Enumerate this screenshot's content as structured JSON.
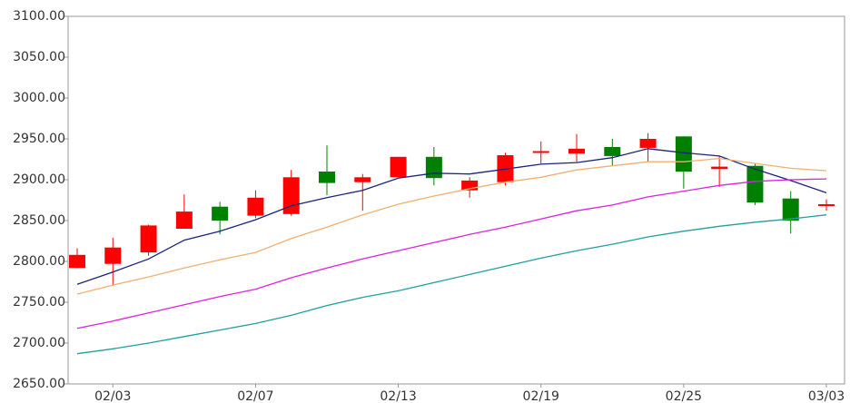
{
  "chart_data": {
    "type": "candlestick",
    "categories": [
      null,
      "02/03",
      null,
      null,
      null,
      "02/07",
      null,
      null,
      null,
      "02/13",
      null,
      null,
      null,
      "02/19",
      null,
      null,
      null,
      "02/25",
      null,
      null,
      null,
      "03/03"
    ],
    "open": [
      2792,
      2797,
      2811,
      2840,
      2867,
      2856,
      2858,
      2910,
      2897,
      2903,
      2928,
      2887,
      2897,
      2934,
      2932,
      2940,
      2939,
      2953,
      2913,
      2917,
      2877,
      2868
    ],
    "high": [
      2816,
      2829,
      2845,
      2882,
      2873,
      2887,
      2912,
      2942,
      2907,
      2928,
      2940,
      2903,
      2933,
      2947,
      2956,
      2950,
      2957,
      2953,
      2929,
      2920,
      2886,
      2876
    ],
    "low": [
      2792,
      2771,
      2807,
      2840,
      2833,
      2853,
      2856,
      2881,
      2862,
      2903,
      2893,
      2878,
      2893,
      2920,
      2922,
      2917,
      2922,
      2889,
      2891,
      2869,
      2834,
      2862
    ],
    "close": [
      2808,
      2817,
      2844,
      2861,
      2850,
      2878,
      2903,
      2896,
      2903,
      2928,
      2902,
      2899,
      2930,
      2935,
      2938,
      2929,
      2950,
      2910,
      2916,
      2872,
      2850,
      2870
    ],
    "up_color": "#ff0000",
    "down_color": "#008000",
    "series": [
      {
        "color": "#1a237e",
        "values": [
          2772,
          2787,
          2803,
          2826,
          2837,
          2851,
          2868,
          2878,
          2887,
          2902,
          2908,
          2907,
          2913,
          2919,
          2921,
          2927,
          2938,
          2933,
          2929,
          2913,
          2899,
          2884
        ]
      },
      {
        "color": "#f0b070",
        "values": [
          2760,
          2771,
          2781,
          2792,
          2802,
          2811,
          2828,
          2842,
          2857,
          2870,
          2880,
          2889,
          2897,
          2903,
          2912,
          2917,
          2922,
          2922,
          2926,
          2920,
          2914,
          2911
        ]
      },
      {
        "color": "#e020e0",
        "values": [
          2718,
          2727,
          2737,
          2747,
          2757,
          2766,
          2780,
          2792,
          2803,
          2813,
          2823,
          2833,
          2842,
          2852,
          2862,
          2869,
          2879,
          2886,
          2893,
          2898,
          2900,
          2901
        ]
      },
      {
        "color": "#20a0a0",
        "values": [
          2687,
          2693,
          2700,
          2708,
          2716,
          2724,
          2734,
          2746,
          2756,
          2764,
          2774,
          2784,
          2794,
          2804,
          2813,
          2821,
          2830,
          2837,
          2843,
          2848,
          2852,
          2857
        ]
      }
    ],
    "ylim": [
      2650,
      3100
    ],
    "yticks": [
      {
        "value": 2650,
        "label": "2650.00"
      },
      {
        "value": 2700,
        "label": "2700.00"
      },
      {
        "value": 2750,
        "label": "2750.00"
      },
      {
        "value": 2800,
        "label": "2800.00"
      },
      {
        "value": 2850,
        "label": "2850.00"
      },
      {
        "value": 2900,
        "label": "2900.00"
      },
      {
        "value": 2950,
        "label": "2950.00"
      },
      {
        "value": 3000,
        "label": "3000.00"
      },
      {
        "value": 3050,
        "label": "3050.00"
      },
      {
        "value": 3100,
        "label": "3100.00"
      }
    ],
    "grid": false
  }
}
